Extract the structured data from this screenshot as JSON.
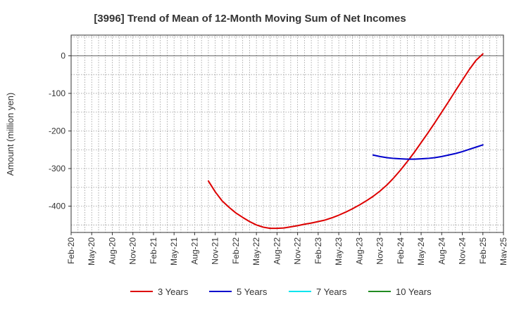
{
  "chart_data": {
    "type": "line",
    "title": "[3996]  Trend of Mean of 12-Month Moving Sum of Net Incomes",
    "xlabel": "",
    "ylabel": "Amount (million yen)",
    "ylim": [
      -470,
      55
    ],
    "yticks": [
      0,
      -100,
      -200,
      -300,
      -400
    ],
    "ytick_labels": [
      "0",
      "-100",
      "-200",
      "-300",
      "-400"
    ],
    "xlim": [
      "2020-02",
      "2025-05"
    ],
    "xtick_labels": [
      "Feb-20",
      "May-20",
      "Aug-20",
      "Nov-20",
      "Feb-21",
      "May-21",
      "Aug-21",
      "Nov-21",
      "Feb-22",
      "May-22",
      "Aug-22",
      "Nov-22",
      "Feb-23",
      "May-23",
      "Aug-23",
      "Nov-23",
      "Feb-24",
      "May-24",
      "Aug-24",
      "Nov-24",
      "Feb-25",
      "May-25"
    ],
    "grid": true,
    "legend_position": "bottom",
    "series": [
      {
        "name": "3 Years",
        "color": "#dd0000",
        "x": [
          "2021-10",
          "2021-11",
          "2021-12",
          "2022-01",
          "2022-02",
          "2022-03",
          "2022-04",
          "2022-05",
          "2022-06",
          "2022-07",
          "2022-08",
          "2022-09",
          "2022-10",
          "2022-11",
          "2022-12",
          "2023-01",
          "2023-02",
          "2023-03",
          "2023-04",
          "2023-05",
          "2023-06",
          "2023-07",
          "2023-08",
          "2023-09",
          "2023-10",
          "2023-11",
          "2023-12",
          "2024-01",
          "2024-02",
          "2024-03",
          "2024-04",
          "2024-05",
          "2024-06",
          "2024-07",
          "2024-08",
          "2024-09",
          "2024-10",
          "2024-11",
          "2024-12",
          "2025-01",
          "2025-02"
        ],
        "values": [
          -333,
          -362,
          -386,
          -403,
          -418,
          -430,
          -441,
          -450,
          -456,
          -459,
          -459,
          -458,
          -455,
          -452,
          -448,
          -445,
          -441,
          -437,
          -431,
          -424,
          -416,
          -407,
          -397,
          -386,
          -374,
          -360,
          -344,
          -325,
          -304,
          -281,
          -257,
          -231,
          -205,
          -178,
          -150,
          -122,
          -93,
          -65,
          -37,
          -12,
          5
        ]
      },
      {
        "name": "5 Years",
        "color": "#0000cc",
        "x": [
          "2023-10",
          "2023-11",
          "2023-12",
          "2024-01",
          "2024-02",
          "2024-03",
          "2024-04",
          "2024-05",
          "2024-06",
          "2024-07",
          "2024-08",
          "2024-09",
          "2024-10",
          "2024-11",
          "2024-12",
          "2025-01",
          "2025-02"
        ],
        "values": [
          -264,
          -268,
          -271,
          -273,
          -274,
          -275,
          -275,
          -274,
          -273,
          -271,
          -268,
          -264,
          -260,
          -255,
          -249,
          -243,
          -237
        ]
      },
      {
        "name": "7 Years",
        "color": "#00e5ee",
        "x": [],
        "values": []
      },
      {
        "name": "10 Years",
        "color": "#228b22",
        "x": [],
        "values": []
      }
    ]
  }
}
